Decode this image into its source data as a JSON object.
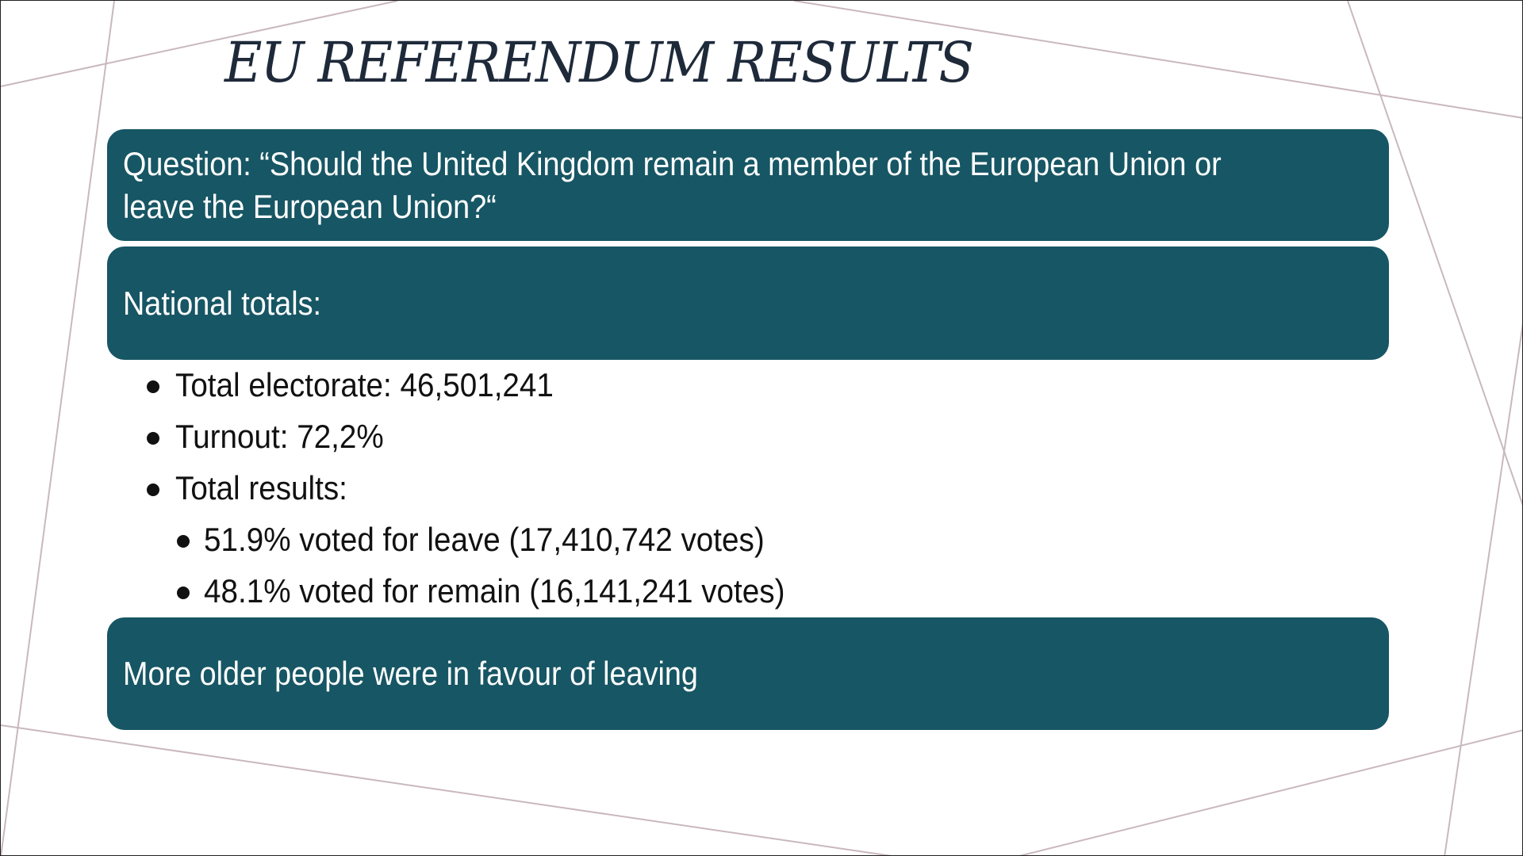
{
  "slide": {
    "title": "EU REFERENDUM RESULTS",
    "question_box": "Question: “Should the United Kingdom remain a member of the European Union or leave the European Union?“",
    "national_box": "National totals:",
    "bullets": [
      "Total electorate: 46,501,241",
      "Turnout: 72,2%",
      "Total results:"
    ],
    "sub_bullets": [
      "51.9% voted for leave (17,410,742 votes)",
      "48.1% voted for remain (16,141,241 votes)"
    ],
    "footer_box": "More older people were in favour of leaving"
  },
  "colors": {
    "box_fill": "#175664",
    "title_text": "#1e2a3a",
    "decor_lines": "#c9b8bc"
  }
}
